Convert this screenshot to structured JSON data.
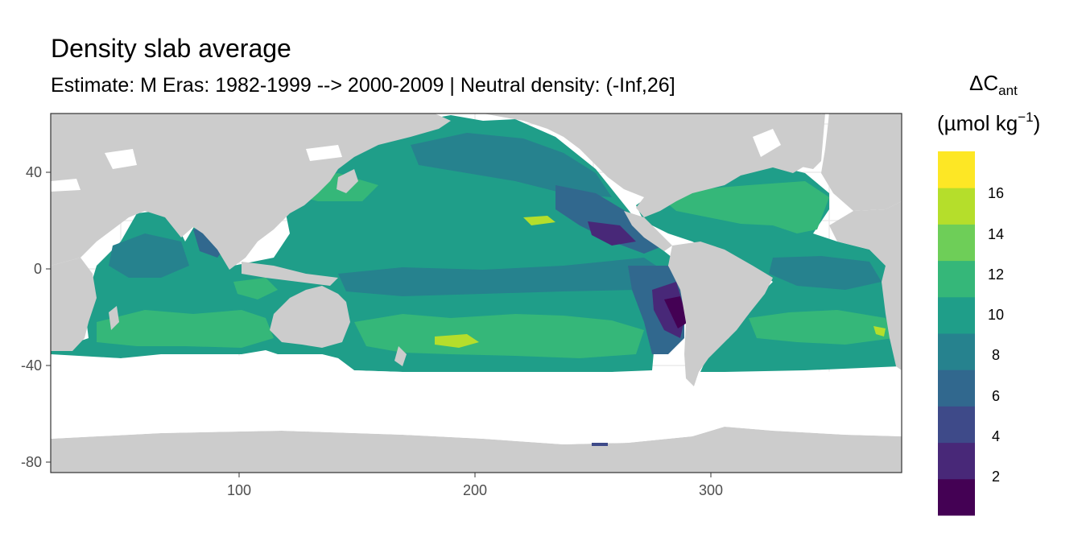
{
  "chart_data": {
    "type": "heatmap",
    "title": "Density slab average",
    "subtitle": "Estimate: M Eras: 1982-1999 --> 2000-2009 | Neutral density: (-Inf,26]",
    "xlim": [
      20,
      380
    ],
    "ylim": [
      -85,
      65
    ],
    "x_ticks": [
      100,
      200,
      300
    ],
    "y_ticks": [
      40,
      0,
      -40,
      -80
    ],
    "grid": true,
    "legend": {
      "placement": "right",
      "title_line1": "ΔC",
      "title_sub": "ant",
      "title_line2_prefix": "(µmol kg",
      "title_line2_sup": "−1",
      "title_line2_suffix": ")",
      "breaks": [
        "16",
        "14",
        "12",
        "10",
        "8",
        "6",
        "4",
        "2"
      ],
      "colors": [
        "#440154",
        "#482878",
        "#3e4a89",
        "#31688e",
        "#26828e",
        "#1f9e89",
        "#35b779",
        "#6ece58",
        "#b5de2b",
        "#fde725"
      ]
    },
    "land_color": "#cccccc",
    "values_sample": [
      {
        "x": 180,
        "y": 50,
        "value": 9
      },
      {
        "x": 180,
        "y": 20,
        "value": 11
      },
      {
        "x": 180,
        "y": -30,
        "value": 13
      },
      {
        "x": 275,
        "y": 20,
        "value": 5
      },
      {
        "x": 285,
        "y": -20,
        "value": 3
      },
      {
        "x": 330,
        "y": 30,
        "value": 13
      },
      {
        "x": 80,
        "y": 10,
        "value": 8
      },
      {
        "x": 70,
        "y": -30,
        "value": 12
      }
    ]
  }
}
